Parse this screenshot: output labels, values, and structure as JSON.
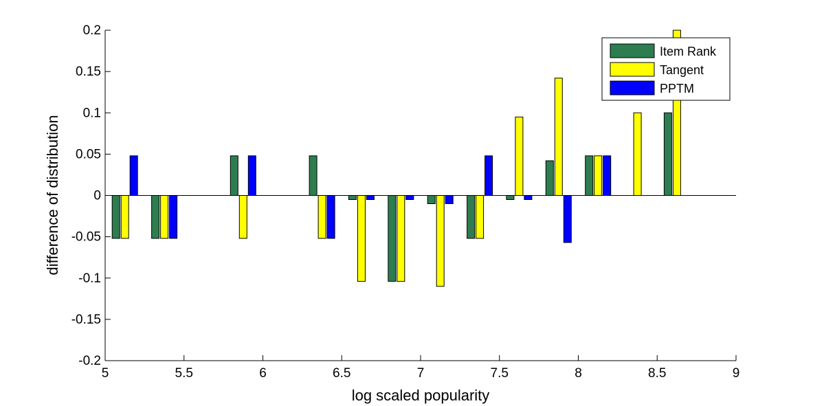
{
  "chart_data": {
    "type": "bar",
    "xlabel": "log scaled popularity",
    "ylabel": "difference of distribution",
    "xlim": [
      5,
      9
    ],
    "ylim": [
      -0.2,
      0.2
    ],
    "xticks": [
      5,
      5.5,
      6,
      6.5,
      7,
      7.5,
      8,
      8.5,
      9
    ],
    "xtick_labels": [
      "5",
      "5.5",
      "6",
      "6.5",
      "7",
      "7.5",
      "8",
      "8.5",
      "9"
    ],
    "yticks": [
      -0.2,
      -0.15,
      -0.1,
      -0.05,
      0,
      0.05,
      0.1,
      0.15,
      0.2
    ],
    "ytick_labels": [
      "-0.2",
      "-0.15",
      "-0.1",
      "-0.05",
      "0",
      "0.05",
      "0.1",
      "0.15",
      "0.2"
    ],
    "grid": false,
    "legend_position": "top-right",
    "group_centers": [
      5.125,
      5.375,
      5.875,
      6.375,
      6.625,
      6.875,
      7.125,
      7.375,
      7.625,
      7.875,
      8.125,
      8.375,
      8.625
    ],
    "series": [
      {
        "name": "Item Rank",
        "color": "#2e7d50",
        "values": [
          -0.052,
          -0.052,
          0.048,
          0.048,
          -0.005,
          -0.104,
          -0.01,
          -0.052,
          -0.005,
          0.042,
          0.048,
          0,
          0.1
        ]
      },
      {
        "name": "Tangent",
        "color": "#ffff00",
        "values": [
          -0.052,
          -0.052,
          -0.052,
          -0.052,
          -0.104,
          -0.104,
          -0.11,
          -0.052,
          0.095,
          0.142,
          0.048,
          0.1,
          0.2
        ]
      },
      {
        "name": "PPTM",
        "color": "#0000ff",
        "values": [
          0.048,
          -0.052,
          0.048,
          -0.052,
          -0.005,
          -0.005,
          -0.01,
          0.048,
          -0.005,
          -0.057,
          0.048,
          0,
          0
        ]
      }
    ]
  }
}
